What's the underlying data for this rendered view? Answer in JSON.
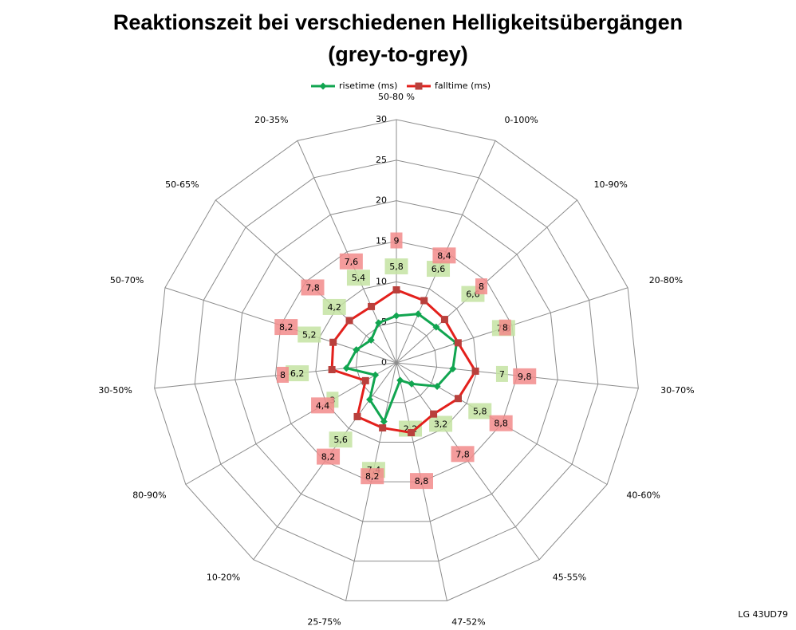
{
  "chart_data": {
    "type": "radar",
    "title": "Reaktionszeit bei verschiedenen Helligkeitsübergängen",
    "subtitle": "(grey-to-grey)",
    "footer": "LG 43UD79",
    "categories": [
      "50-80 %",
      "0-100%",
      "10-90%",
      "20-80%",
      "30-70%",
      "40-60%",
      "45-55%",
      "47-52%",
      "25-75%",
      "10-20%",
      "80-90%",
      "30-50%",
      "50-70%",
      "50-65%",
      "20-35%"
    ],
    "series": [
      {
        "name": "risetime (ms)",
        "color": "#11a550",
        "label_color": "#c4e3a2",
        "values": [
          5.8,
          6.6,
          6.6,
          7.8,
          7,
          5.8,
          3.2,
          2.2,
          7.4,
          5.6,
          3,
          6.2,
          5.2,
          4.2,
          5.4
        ],
        "value_labels": [
          "5,8",
          "6,6",
          "6,6",
          "7,8",
          "7",
          "5,8",
          "3,2",
          "2,2",
          "7,4",
          "5,6",
          "3",
          "6,2",
          "5,2",
          "4,2",
          "5,4"
        ]
      },
      {
        "name": "falltime (ms)",
        "color": "#e3201c",
        "label_color": "#f28b8b",
        "values": [
          9,
          8.4,
          8,
          8,
          9.8,
          8.8,
          7.8,
          8.8,
          8.2,
          8.2,
          4.4,
          8,
          8.2,
          7.8,
          7.6
        ],
        "value_labels": [
          "9",
          "8,4",
          "8",
          "8",
          "9,8",
          "8,8",
          "7,8",
          "8,8",
          "8,2",
          "8,2",
          "4,4",
          "8",
          "8,2",
          "7,8",
          "7,6"
        ]
      }
    ],
    "ylim": [
      0,
      30
    ],
    "yticks": [
      0,
      5,
      10,
      15,
      20,
      25,
      30
    ],
    "grid": true,
    "legend": "top"
  }
}
